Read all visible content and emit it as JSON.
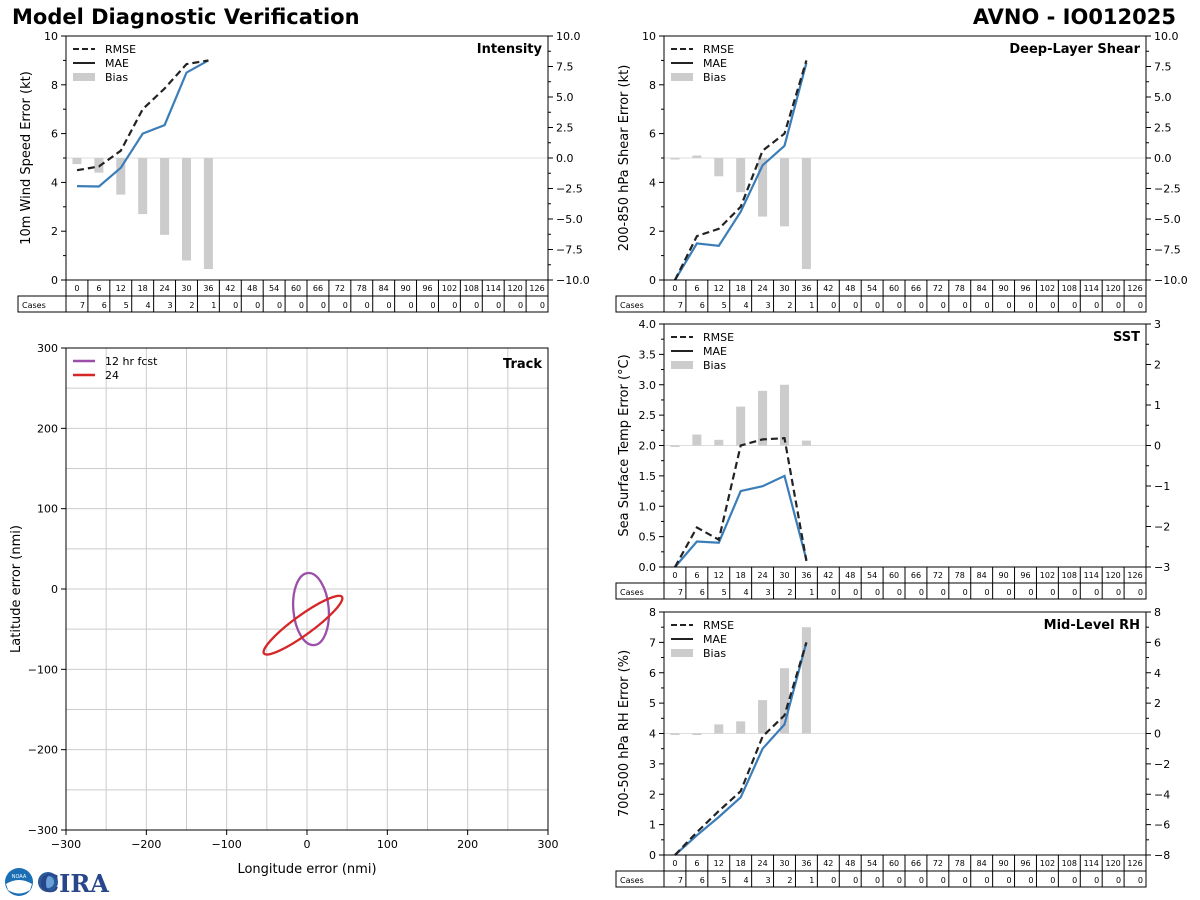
{
  "header": {
    "title": "Model Diagnostic Verification",
    "model_storm": "AVNO - IO012025"
  },
  "logos": {
    "noaa_text": "NOAA",
    "cira_text": "CIRA"
  },
  "colors": {
    "rmse": "#222222",
    "mae": "#3a7db8",
    "bias": "#cccccc",
    "track_12": "#9b4fa8",
    "track_24": "#d62728"
  },
  "table": {
    "cases_label": "Cases",
    "hours": [
      0,
      6,
      12,
      18,
      24,
      30,
      36,
      42,
      48,
      54,
      60,
      66,
      72,
      78,
      84,
      90,
      96,
      102,
      108,
      114,
      120,
      126
    ],
    "cases": [
      7,
      6,
      5,
      4,
      3,
      2,
      1,
      0,
      0,
      0,
      0,
      0,
      0,
      0,
      0,
      0,
      0,
      0,
      0,
      0,
      0,
      0
    ]
  },
  "chart_data": [
    {
      "id": "intensity",
      "type": "line",
      "title": "Intensity",
      "ylabel": "10m Wind Speed Error (kt)",
      "ylim": [
        0,
        10
      ],
      "yticks": [
        0,
        2,
        4,
        6,
        8,
        10
      ],
      "y2lim": [
        -10,
        10
      ],
      "y2ticks": [
        "-10.0",
        "-7.5",
        "-5.0",
        "-2.5",
        "0.0",
        "2.5",
        "5.0",
        "7.5",
        "10.0"
      ],
      "legend": [
        "RMSE",
        "MAE",
        "Bias"
      ],
      "x": [
        0,
        6,
        12,
        18,
        24,
        30,
        36
      ],
      "series": [
        {
          "name": "RMSE",
          "values": [
            4.5,
            4.65,
            5.3,
            7.0,
            7.85,
            8.85,
            9.0
          ]
        },
        {
          "name": "MAE",
          "values": [
            3.85,
            3.83,
            4.6,
            6.0,
            6.35,
            8.5,
            9.0
          ]
        },
        {
          "name": "Bias",
          "values": [
            -0.5,
            -1.2,
            -3.0,
            -4.6,
            -6.3,
            -8.4,
            -9.1
          ]
        }
      ]
    },
    {
      "id": "shear",
      "type": "line",
      "title": "Deep-Layer Shear",
      "ylabel": "200-850 hPa Shear Error (kt)",
      "ylim": [
        0,
        10
      ],
      "yticks": [
        0,
        2,
        4,
        6,
        8,
        10
      ],
      "y2lim": [
        -10,
        10
      ],
      "y2ticks": [
        "-10.0",
        "-7.5",
        "-5.0",
        "-2.5",
        "0.0",
        "2.5",
        "5.0",
        "7.5",
        "10.0"
      ],
      "legend": [
        "RMSE",
        "MAE",
        "Bias"
      ],
      "x": [
        0,
        6,
        12,
        18,
        24,
        30,
        36
      ],
      "series": [
        {
          "name": "RMSE",
          "values": [
            0.0,
            1.8,
            2.1,
            3.0,
            5.3,
            6.0,
            9.0
          ]
        },
        {
          "name": "MAE",
          "values": [
            0.0,
            1.5,
            1.4,
            2.8,
            4.7,
            5.5,
            8.9
          ]
        },
        {
          "name": "Bias",
          "values": [
            0.0,
            0.2,
            -1.5,
            -2.8,
            -4.8,
            -5.6,
            -9.1
          ]
        }
      ]
    },
    {
      "id": "sst",
      "type": "line",
      "title": "SST",
      "ylabel": "Sea Surface Temp Error (°C)",
      "ylim": [
        0,
        4
      ],
      "yticks": [
        "0.0",
        "0.5",
        "1.0",
        "1.5",
        "2.0",
        "2.5",
        "3.0",
        "3.5",
        "4.0"
      ],
      "y2lim": [
        -3,
        3
      ],
      "y2ticks": [
        "-3",
        "-2",
        "-1",
        "0",
        "1",
        "2",
        "3"
      ],
      "legend": [
        "RMSE",
        "MAE",
        "Bias"
      ],
      "x": [
        0,
        6,
        12,
        18,
        24,
        30,
        36
      ],
      "series": [
        {
          "name": "RMSE",
          "values": [
            0.0,
            0.65,
            0.45,
            2.0,
            2.1,
            2.12,
            0.1
          ]
        },
        {
          "name": "MAE",
          "values": [
            0.0,
            0.42,
            0.4,
            1.25,
            1.33,
            1.5,
            0.12
          ]
        },
        {
          "name": "Bias",
          "values": [
            0.0,
            0.27,
            0.14,
            0.96,
            1.35,
            1.5,
            0.12
          ]
        }
      ]
    },
    {
      "id": "rh",
      "type": "line",
      "title": "Mid-Level RH",
      "ylabel": "700-500 hPa RH Error (%)",
      "ylim": [
        0,
        8
      ],
      "yticks": [
        0,
        1,
        2,
        3,
        4,
        5,
        6,
        7,
        8
      ],
      "y2lim": [
        -8,
        8
      ],
      "y2ticks": [
        "-8",
        "-6",
        "-4",
        "-2",
        "0",
        "2",
        "4",
        "6",
        "8"
      ],
      "legend": [
        "RMSE",
        "MAE",
        "Bias"
      ],
      "x": [
        0,
        6,
        12,
        18,
        24,
        30,
        36
      ],
      "series": [
        {
          "name": "RMSE",
          "values": [
            0.0,
            0.75,
            1.45,
            2.1,
            3.9,
            4.6,
            7.0
          ]
        },
        {
          "name": "MAE",
          "values": [
            0.0,
            0.65,
            1.25,
            1.9,
            3.5,
            4.3,
            7.0
          ]
        },
        {
          "name": "Bias",
          "values": [
            0.0,
            -0.1,
            0.6,
            0.8,
            2.2,
            4.3,
            7.0
          ]
        }
      ]
    },
    {
      "id": "track",
      "type": "scatter",
      "title": "Track",
      "xlabel": "Longitude error (nmi)",
      "ylabel": "Latitude error (nmi)",
      "xlim": [
        -300,
        300
      ],
      "ylim": [
        -300,
        300
      ],
      "ticks": [
        -300,
        -200,
        -100,
        0,
        100,
        200,
        300
      ],
      "legend": [
        "12 hr fcst",
        "24"
      ],
      "ellipses": [
        {
          "name": "12 hr fcst",
          "center": [
            5,
            -25
          ],
          "semi_major": 45,
          "semi_minor": 22,
          "angle_deg": 95
        },
        {
          "name": "24",
          "center": [
            -5,
            -45
          ],
          "semi_major": 60,
          "semi_minor": 12,
          "angle_deg": 36
        }
      ]
    }
  ]
}
